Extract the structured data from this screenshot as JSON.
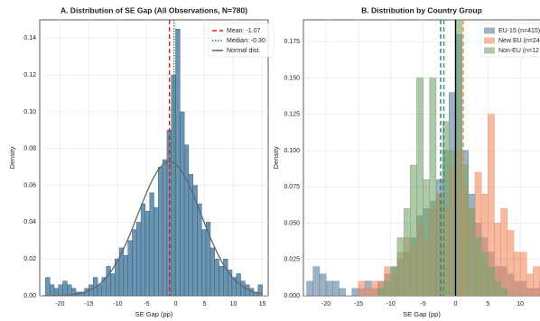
{
  "chart_data": [
    {
      "type": "histogram",
      "title": "A. Distribution of SE Gap (All Observations, N=780)",
      "xlabel": "SE Gap (pp)",
      "ylabel": "Density",
      "color": "#6a94b4",
      "edgecolor": "#2f4f66",
      "bins": [
        -22.5,
        -21.75,
        -21,
        -20.25,
        -19.5,
        -18.75,
        -18,
        -17.25,
        -16.5,
        -15.75,
        -15,
        -14.25,
        -13.5,
        -12.75,
        -12,
        -11.25,
        -10.5,
        -9.75,
        -9,
        -8.25,
        -7.5,
        -6.75,
        -6,
        -5.25,
        -4.5,
        -3.75,
        -3,
        -2.25,
        -1.5,
        -0.75,
        0,
        0.75,
        1.5,
        2.25,
        3,
        3.75,
        4.5,
        5.25,
        6,
        6.75,
        7.5,
        8.25,
        9,
        9.75,
        10.5,
        11.25,
        12,
        12.75,
        13.5,
        14.25,
        15
      ],
      "values": [
        0.01,
        0.006,
        0.004,
        0.006,
        0.008,
        0.006,
        0.004,
        0.002,
        0.002,
        0.004,
        0.006,
        0.01,
        0.006,
        0.01,
        0.016,
        0.012,
        0.02,
        0.026,
        0.022,
        0.03,
        0.036,
        0.04,
        0.05,
        0.046,
        0.056,
        0.048,
        0.07,
        0.074,
        0.09,
        0.12,
        0.145,
        0.1,
        0.082,
        0.066,
        0.06,
        0.05,
        0.036,
        0.04,
        0.026,
        0.02,
        0.016,
        0.02,
        0.014,
        0.01,
        0.012,
        0.008,
        0.006,
        0.004,
        0.002,
        0.006
      ],
      "curve": {
        "name": "Normal dist.",
        "color": "#666666",
        "x": [
          -23,
          -22,
          -21,
          -20,
          -19,
          -18,
          -17,
          -16,
          -15,
          -14,
          -13,
          -12,
          -11,
          -10,
          -9,
          -8,
          -7,
          -6,
          -5,
          -4,
          -3,
          -2,
          -1,
          0,
          1,
          2,
          3,
          4,
          5,
          6,
          7,
          8,
          9,
          10,
          11,
          12,
          13,
          14,
          15
        ],
        "values": [
          0.0,
          5e-05,
          0.0001,
          0.0002,
          0.0003,
          0.0006,
          0.001,
          0.0017,
          0.0028,
          0.0044,
          0.0067,
          0.0099,
          0.014,
          0.0191,
          0.0254,
          0.0326,
          0.0405,
          0.0485,
          0.0563,
          0.0632,
          0.0686,
          0.072,
          0.073,
          0.0716,
          0.068,
          0.0623,
          0.0553,
          0.0474,
          0.0394,
          0.0315,
          0.0245,
          0.0183,
          0.0133,
          0.0093,
          0.0064,
          0.0041,
          0.0026,
          0.0016,
          0.001
        ]
      },
      "vlines": [
        {
          "name": "Mean: -1.07",
          "x": -1.07,
          "color": "#e41a1c",
          "style": "dashed"
        },
        {
          "name": "Median: -0.30",
          "x": -0.3,
          "color": "#2e8b3a",
          "style": "dotted"
        }
      ],
      "xlim": [
        -23.5,
        16
      ],
      "ylim": [
        0,
        0.15
      ],
      "xticks": [
        -20,
        -15,
        -10,
        -5,
        0,
        5,
        10,
        15
      ],
      "yticks": [
        {
          "value": 0,
          "label": "0.00"
        },
        {
          "value": 0.02,
          "label": "0.02"
        },
        {
          "value": 0.04,
          "label": "0.04"
        },
        {
          "value": 0.06,
          "label": "0.06"
        },
        {
          "value": 0.08,
          "label": "0.08"
        },
        {
          "value": 0.1,
          "label": "0.10"
        },
        {
          "value": 0.12,
          "label": "0.12"
        },
        {
          "value": 0.14,
          "label": "0.14"
        }
      ],
      "grid": true,
      "legend": "upper right"
    },
    {
      "type": "histogram",
      "title": "B. Distribution by Country Group",
      "xlabel": "SE Gap (pp)",
      "ylabel": "Density",
      "bins": [
        -23,
        -22,
        -21,
        -20,
        -19,
        -18,
        -17,
        -16,
        -15,
        -14,
        -13,
        -12,
        -11,
        -10,
        -9,
        -8,
        -7,
        -6,
        -5,
        -4,
        -3,
        -2,
        -1,
        0,
        1,
        2,
        3,
        4,
        5,
        6,
        7,
        8,
        9,
        10,
        11,
        12,
        13,
        14,
        15
      ],
      "series": [
        {
          "name": "EU-15 (n=415)",
          "color": "#5b7f9c",
          "values": [
            0.01,
            0.02,
            0.015,
            0.01,
            0.01,
            0.005,
            0,
            0.005,
            0.005,
            0.01,
            0.005,
            0.01,
            0.015,
            0.02,
            0.025,
            0.03,
            0.04,
            0.055,
            0.06,
            0.065,
            0.08,
            0.1,
            0.14,
            0.18,
            0.1,
            0.07,
            0.05,
            0.04,
            0.03,
            0.02,
            0.02,
            0.015,
            0.01,
            0.01,
            0.005,
            0.005,
            0.005,
            0.005
          ]
        },
        {
          "name": "New EU (n=24",
          "color": "#f08a64",
          "values": [
            0,
            0,
            0,
            0,
            0,
            0,
            0,
            0,
            0.01,
            0.005,
            0.01,
            0.01,
            0.02,
            0.015,
            0.03,
            0.04,
            0.035,
            0.05,
            0.04,
            0.06,
            0.07,
            0.06,
            0.09,
            0.1,
            0.075,
            0.06,
            0.085,
            0.07,
            0.125,
            0.05,
            0.06,
            0.045,
            0.03,
            0.03,
            0.015,
            0.02,
            0.01,
            0.005
          ]
        },
        {
          "name": "Non-EU (n=12",
          "color": "#78a36e",
          "values": [
            0,
            0,
            0,
            0,
            0,
            0,
            0,
            0,
            0,
            0,
            0,
            0.005,
            0.01,
            0.02,
            0.04,
            0.06,
            0.09,
            0.15,
            0.08,
            0.15,
            0.07,
            0.12,
            0.1,
            0.19,
            0.09,
            0.06,
            0.04,
            0.03,
            0.02,
            0.01,
            0.005,
            0,
            0,
            0,
            0,
            0,
            0,
            0
          ]
        }
      ],
      "vlines": [
        {
          "x": -2.3,
          "color": "#3d6f96",
          "style": "dashed"
        },
        {
          "x": -1.8,
          "color": "#3a9a5a",
          "style": "dashed"
        },
        {
          "x": 1.2,
          "color": "#f08a40",
          "style": "dashed"
        },
        {
          "x": 0,
          "color": "#000000",
          "style": "solid"
        }
      ],
      "xlim": [
        -23.5,
        15
      ],
      "ylim": [
        0,
        0.19
      ],
      "xticks": [
        -20,
        -15,
        -10,
        -5,
        0,
        5,
        10,
        15
      ],
      "yticks": [
        {
          "value": 0,
          "label": "0.000"
        },
        {
          "value": 0.025,
          "label": "0.025"
        },
        {
          "value": 0.05,
          "label": "0.050"
        },
        {
          "value": 0.075,
          "label": "0.075"
        },
        {
          "value": 0.1,
          "label": "0.100"
        },
        {
          "value": 0.125,
          "label": "0.125"
        },
        {
          "value": 0.15,
          "label": "0.150"
        },
        {
          "value": 0.175,
          "label": "0.175"
        }
      ],
      "grid": true,
      "legend": "upper right"
    }
  ]
}
